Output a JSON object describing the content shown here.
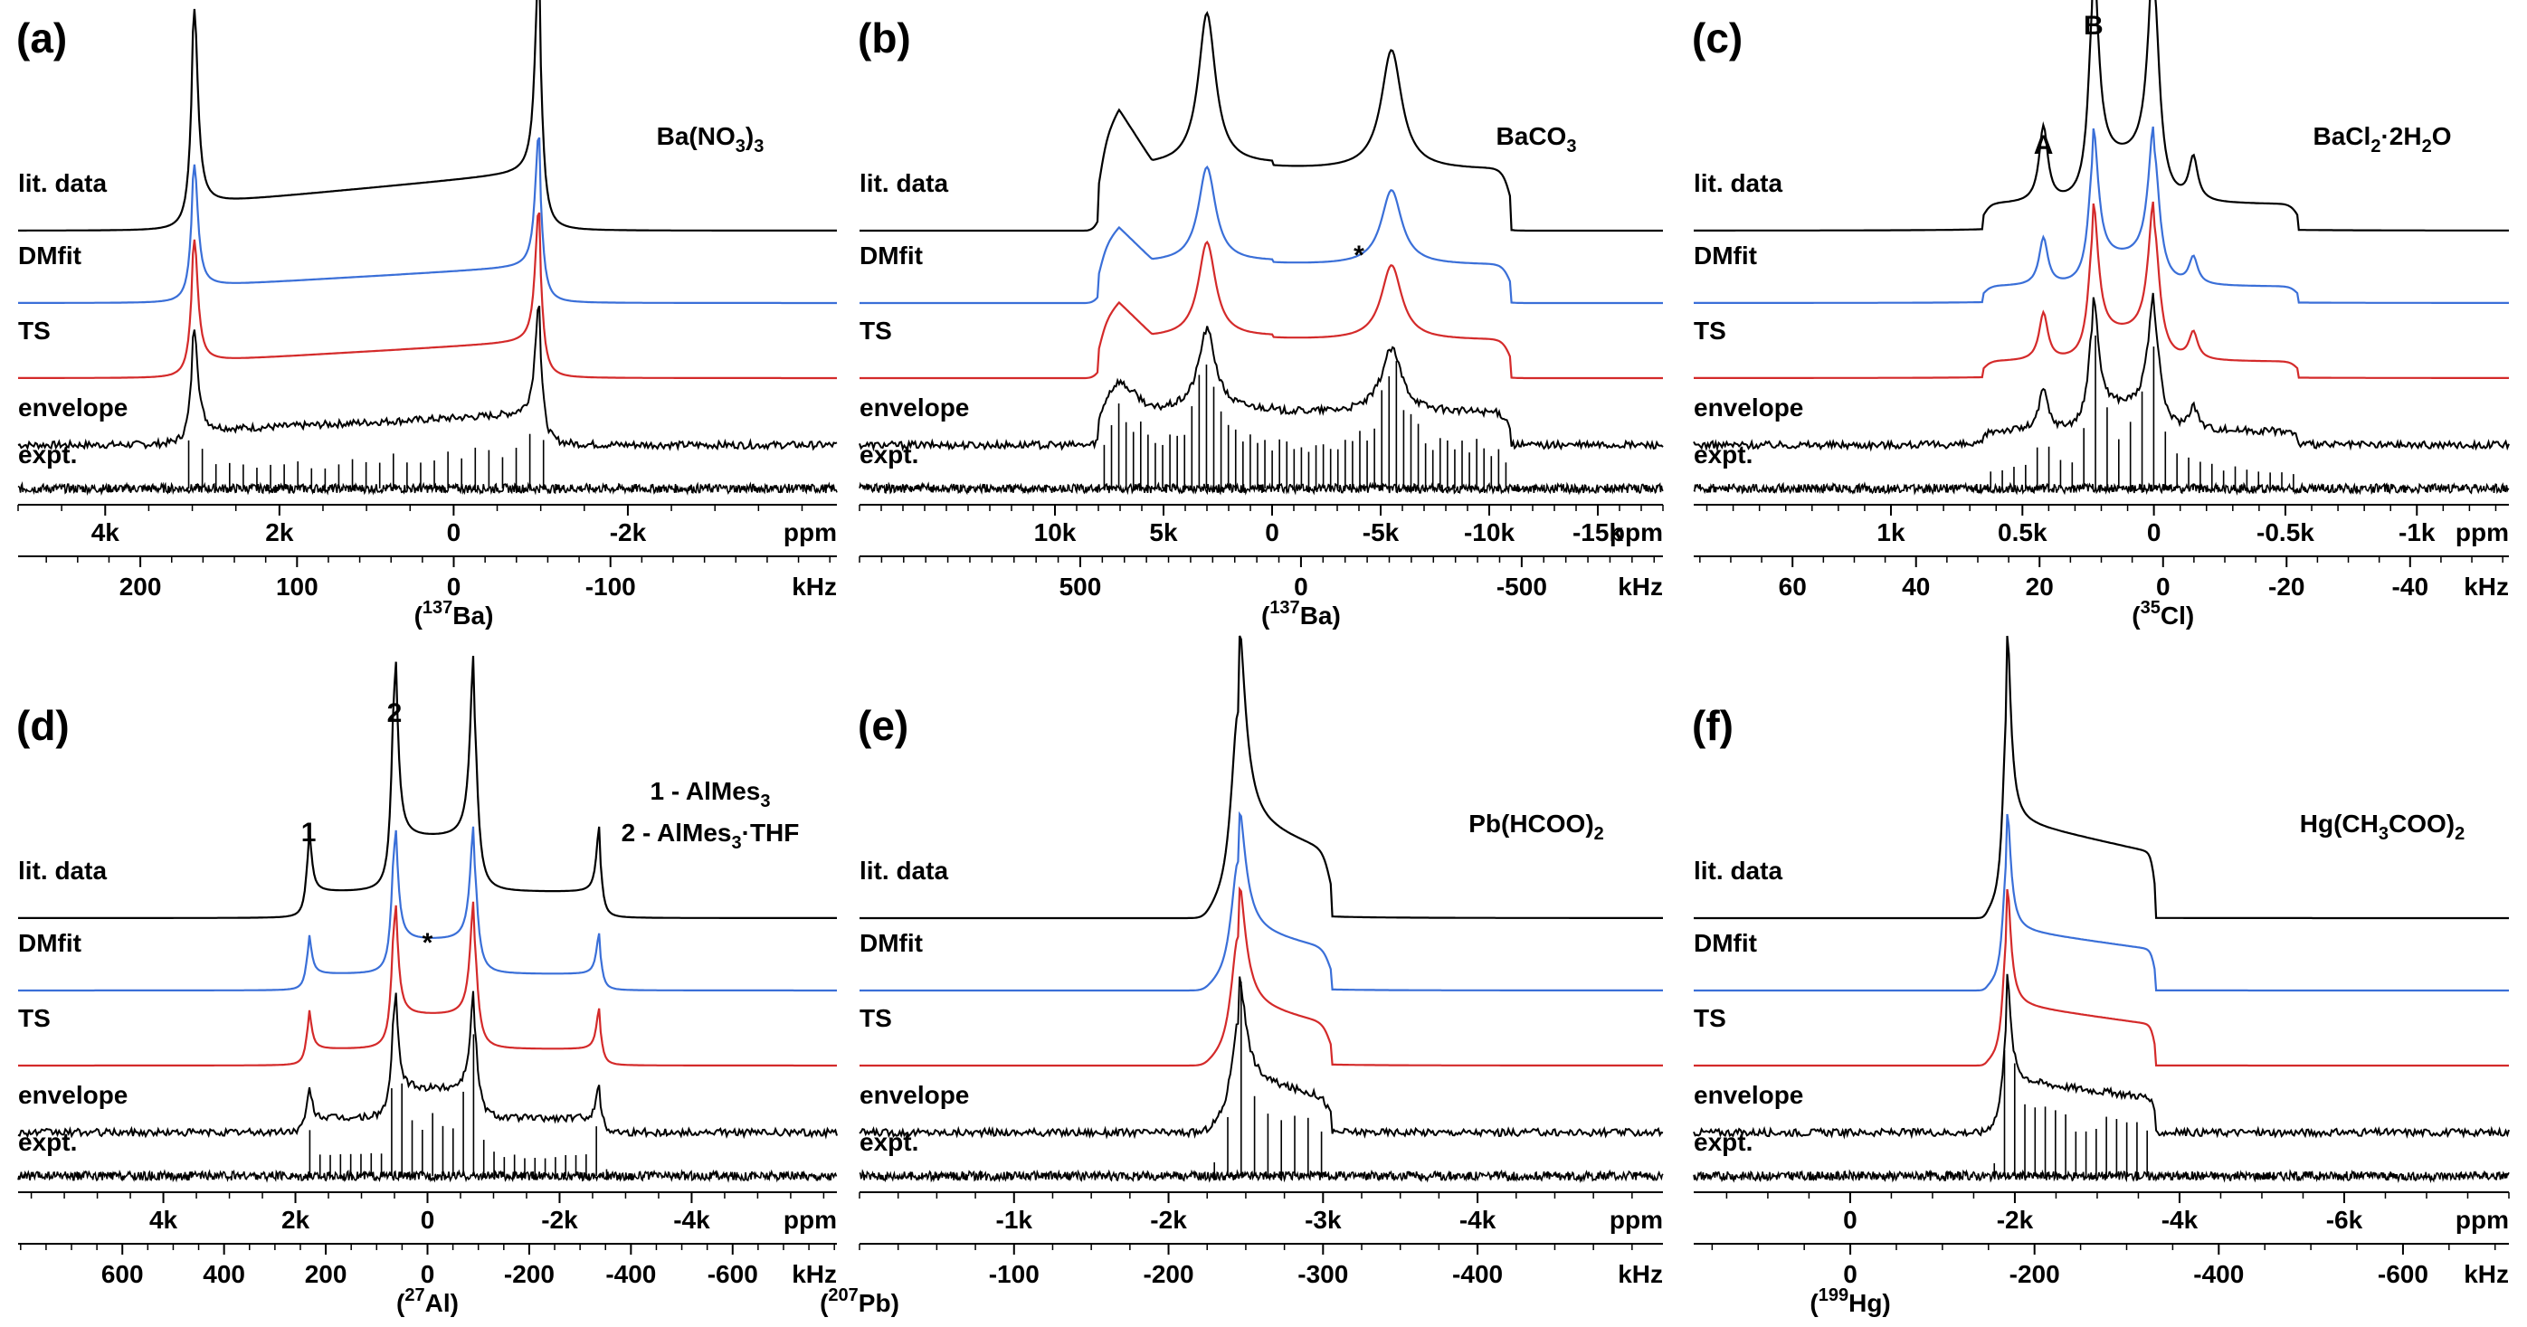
{
  "chart_data": [
    {
      "id": "a",
      "type": "line",
      "panel_label": "(a)",
      "compound": "Ba(NO3)3",
      "compound_html": "Ba(NO<tspan font-size='20' dy='8'>3</tspan><tspan dy='-8'>)</tspan><tspan font-size='20' dy='8'>3</tspan>",
      "nucleus": "137Ba",
      "nucleus_html": "(<tspan font-size='20' dy='-12'>137</tspan><tspan dy='12'>Ba)</tspan>",
      "ppm_axis": {
        "range": [
          5000,
          -4400
        ],
        "ticks": [
          {
            "v": 4000,
            "l": "4k"
          },
          {
            "v": 2000,
            "l": "2k"
          },
          {
            "v": 0,
            "l": "0"
          },
          {
            "v": -2000,
            "l": "-2k"
          }
        ],
        "unit": "ppm",
        "minor_step": 500
      },
      "khz_axis": {
        "range": [
          278,
          -244.5
        ],
        "ticks": [
          {
            "v": 200,
            "l": "200"
          },
          {
            "v": 100,
            "l": "100"
          },
          {
            "v": 0,
            "l": "0"
          },
          {
            "v": -100,
            "l": "-100"
          }
        ],
        "unit": "kHz",
        "minor_step": 20
      },
      "series": [
        {
          "name": "lit. data",
          "color": "#000000"
        },
        {
          "name": "DMfit",
          "color": "#3a6fd8"
        },
        {
          "name": "TS",
          "color": "#d42a2a"
        },
        {
          "name": "envelope",
          "color": "#000000"
        },
        {
          "name": "expt.",
          "color": "#000000"
        }
      ],
      "spectrum": {
        "type": "ct",
        "left_ppm": 3000,
        "right_ppm": -1000,
        "skew": 0.15,
        "left_h": 1.0,
        "right_h": 1.08,
        "n_sidebands": 30
      },
      "annotations": []
    },
    {
      "id": "b",
      "type": "line",
      "panel_label": "(b)",
      "compound": "BaCO3",
      "compound_html": "BaCO<tspan font-size='20' dy='8'>3</tspan>",
      "nucleus": "137Ba",
      "nucleus_html": "(<tspan font-size='20' dy='-12'>137</tspan><tspan dy='12'>Ba)</tspan>",
      "ppm_axis": {
        "range": [
          19000,
          -18000
        ],
        "ticks": [
          {
            "v": 10000,
            "l": "10k"
          },
          {
            "v": 5000,
            "l": "5k"
          },
          {
            "v": 0,
            "l": "0"
          },
          {
            "v": -5000,
            "l": "-5k"
          },
          {
            "v": -10000,
            "l": "-10k"
          },
          {
            "v": -15000,
            "l": "-15k"
          }
        ],
        "unit": "ppm",
        "minor_step": 1000
      },
      "khz_axis": {
        "range": [
          1000,
          -820
        ],
        "ticks": [
          {
            "v": 500,
            "l": "500"
          },
          {
            "v": 0,
            "l": "0"
          },
          {
            "v": -500,
            "l": "-500"
          }
        ],
        "unit": "kHz",
        "minor_step": 50
      },
      "series": [
        {
          "name": "lit. data",
          "color": "#000000"
        },
        {
          "name": "DMfit",
          "color": "#3a6fd8"
        },
        {
          "name": "TS",
          "color": "#d42a2a"
        },
        {
          "name": "envelope",
          "color": "#000000"
        },
        {
          "name": "expt.",
          "color": "#000000"
        }
      ],
      "spectrum": {
        "type": "broad",
        "left_ppm": 8000,
        "right_ppm": -11000,
        "h1_ppm": 3000,
        "h2_ppm": -5500,
        "step_ppm": 0,
        "n_sidebands": 55
      },
      "annotations": [
        {
          "text": "*",
          "ppm": -4000
        }
      ]
    },
    {
      "id": "c",
      "type": "line",
      "panel_label": "(c)",
      "compound": "BaCl2·2H2O",
      "compound_html": "BaCl<tspan font-size='20' dy='8'>2</tspan><tspan dy='-8'>·2H</tspan><tspan font-size='20' dy='8'>2</tspan><tspan dy='-8'>O</tspan>",
      "nucleus": "35Cl",
      "nucleus_html": "(<tspan font-size='20' dy='-12'>35</tspan><tspan dy='12'>Cl)</tspan>",
      "ppm_axis": {
        "range": [
          1750,
          -1350
        ],
        "ticks": [
          {
            "v": 1000,
            "l": "1k"
          },
          {
            "v": 500,
            "l": "0.5k"
          },
          {
            "v": 0,
            "l": "0"
          },
          {
            "v": -500,
            "l": "-0.5k"
          },
          {
            "v": -1000,
            "l": "-1k"
          }
        ],
        "unit": "ppm",
        "minor_step": 100
      },
      "khz_axis": {
        "range": [
          76,
          -56
        ],
        "ticks": [
          {
            "v": 60,
            "l": "60"
          },
          {
            "v": 40,
            "l": "40"
          },
          {
            "v": 20,
            "l": "20"
          },
          {
            "v": 0,
            "l": "0"
          },
          {
            "v": -20,
            "l": "-20"
          },
          {
            "v": -40,
            "l": "-40"
          }
        ],
        "unit": "kHz",
        "minor_step": 5
      },
      "series": [
        {
          "name": "lit. data",
          "color": "#000000"
        },
        {
          "name": "DMfit",
          "color": "#3a6fd8"
        },
        {
          "name": "TS",
          "color": "#d42a2a"
        },
        {
          "name": "envelope",
          "color": "#000000"
        },
        {
          "name": "expt.",
          "color": "#000000"
        }
      ],
      "spectrum": {
        "type": "two_site",
        "left_ppm": 650,
        "right_ppm": -550,
        "peaks_ppm": [
          420,
          230,
          0,
          -150
        ],
        "n_sidebands": 35
      },
      "annotations": [
        {
          "text": "A",
          "ppm": 420
        },
        {
          "text": "B",
          "ppm": 230
        }
      ]
    },
    {
      "id": "d",
      "type": "line",
      "panel_label": "(d)",
      "compound": "1 - AlMes3 / 2 - AlMes3·THF",
      "compound_html": "1 - AlMes<tspan font-size='20' dy='8'>3</tspan>",
      "compound2_html": "2 - AlMes<tspan font-size='20' dy='8'>3</tspan><tspan dy='-8'>·THF</tspan>",
      "nucleus": "27Al",
      "nucleus_html": "(<tspan font-size='20' dy='-12'>27</tspan><tspan dy='12'>Al)</tspan>",
      "ppm_axis": {
        "range": [
          6200,
          -6200
        ],
        "ticks": [
          {
            "v": 4000,
            "l": "4k"
          },
          {
            "v": 2000,
            "l": "2k"
          },
          {
            "v": 0,
            "l": "0"
          },
          {
            "v": -2000,
            "l": "-2k"
          },
          {
            "v": -4000,
            "l": "-4k"
          }
        ],
        "unit": "ppm",
        "minor_step": 500
      },
      "khz_axis": {
        "range": [
          805,
          -805
        ],
        "ticks": [
          {
            "v": 600,
            "l": "600"
          },
          {
            "v": 400,
            "l": "400"
          },
          {
            "v": 200,
            "l": "200"
          },
          {
            "v": 0,
            "l": "0"
          },
          {
            "v": -200,
            "l": "-200"
          },
          {
            "v": -400,
            "l": "-400"
          },
          {
            "v": -600,
            "l": "-600"
          }
        ],
        "unit": "kHz",
        "minor_step": 50
      },
      "series": [
        {
          "name": "lit. data",
          "color": "#000000"
        },
        {
          "name": "DMfit",
          "color": "#3a6fd8"
        },
        {
          "name": "TS",
          "color": "#d42a2a"
        },
        {
          "name": "envelope",
          "color": "#000000"
        },
        {
          "name": "expt.",
          "color": "#000000"
        }
      ],
      "spectrum": {
        "type": "al",
        "site1_ppm": [
          1800,
          -2600
        ],
        "site2_ppm": [
          500,
          -700
        ],
        "n_sidebands": 40
      },
      "annotations": [
        {
          "text": "1",
          "ppm": 1800
        },
        {
          "text": "2",
          "ppm": 500
        },
        {
          "text": "*",
          "ppm": 0
        }
      ]
    },
    {
      "id": "e",
      "type": "line",
      "panel_label": "(e)",
      "compound": "Pb(HCOO)2",
      "compound_html": "Pb(HCOO)<tspan font-size='20' dy='8'>2</tspan>",
      "nucleus": "207Pb",
      "nucleus_html": "(<tspan font-size='20' dy='-12'>207</tspan><tspan dy='12'>Pb)</tspan>",
      "ppm_axis": {
        "range": [
          0,
          -5200
        ],
        "ticks": [
          {
            "v": -1000,
            "l": "-1k"
          },
          {
            "v": -2000,
            "l": "-2k"
          },
          {
            "v": -3000,
            "l": "-3k"
          },
          {
            "v": -4000,
            "l": "-4k"
          }
        ],
        "unit": "ppm",
        "minor_step": 250
      },
      "khz_axis": {
        "range": [
          0,
          -520
        ],
        "ticks": [
          {
            "v": -100,
            "l": "-100"
          },
          {
            "v": -200,
            "l": "-200"
          },
          {
            "v": -300,
            "l": "-300"
          },
          {
            "v": -400,
            "l": "-400"
          }
        ],
        "unit": "kHz",
        "minor_step": 25
      },
      "series": [
        {
          "name": "lit. data",
          "color": "#000000"
        },
        {
          "name": "DMfit",
          "color": "#3a6fd8"
        },
        {
          "name": "TS",
          "color": "#d42a2a"
        },
        {
          "name": "envelope",
          "color": "#000000"
        },
        {
          "name": "expt.",
          "color": "#000000"
        }
      ],
      "spectrum": {
        "type": "csa",
        "left_ppm": -2250,
        "peak_ppm": -2450,
        "shoulder_ppm": -3050,
        "n_sidebands": 30
      },
      "annotations": []
    },
    {
      "id": "f",
      "type": "line",
      "panel_label": "(f)",
      "compound": "Hg(CH3COO)2",
      "compound_html": "Hg(CH<tspan font-size='20' dy='8'>3</tspan><tspan dy='-8'>COO)</tspan><tspan font-size='20' dy='8'>2</tspan>",
      "nucleus": "199Hg",
      "nucleus_html": "(<tspan font-size='20' dy='-12'>199</tspan><tspan dy='12'>Hg)</tspan>",
      "ppm_axis": {
        "range": [
          1900,
          -8000
        ],
        "ticks": [
          {
            "v": 0,
            "l": "0"
          },
          {
            "v": -2000,
            "l": "-2k"
          },
          {
            "v": -4000,
            "l": "-4k"
          },
          {
            "v": -6000,
            "l": "-6k"
          }
        ],
        "unit": "ppm",
        "minor_step": 500
      },
      "khz_axis": {
        "range": [
          170,
          -715
        ],
        "ticks": [
          {
            "v": 0,
            "l": "0"
          },
          {
            "v": -200,
            "l": "-200"
          },
          {
            "v": -400,
            "l": "-400"
          },
          {
            "v": -600,
            "l": "-600"
          }
        ],
        "unit": "kHz",
        "minor_step": 50
      },
      "series": [
        {
          "name": "lit. data",
          "color": "#000000"
        },
        {
          "name": "DMfit",
          "color": "#3a6fd8"
        },
        {
          "name": "TS",
          "color": "#d42a2a"
        },
        {
          "name": "envelope",
          "color": "#000000"
        },
        {
          "name": "expt.",
          "color": "#000000"
        }
      ],
      "spectrum": {
        "type": "csa",
        "left_ppm": -1650,
        "peak_ppm": -1900,
        "shoulder_ppm": -3700,
        "n_sidebands": 40
      },
      "annotations": []
    }
  ]
}
